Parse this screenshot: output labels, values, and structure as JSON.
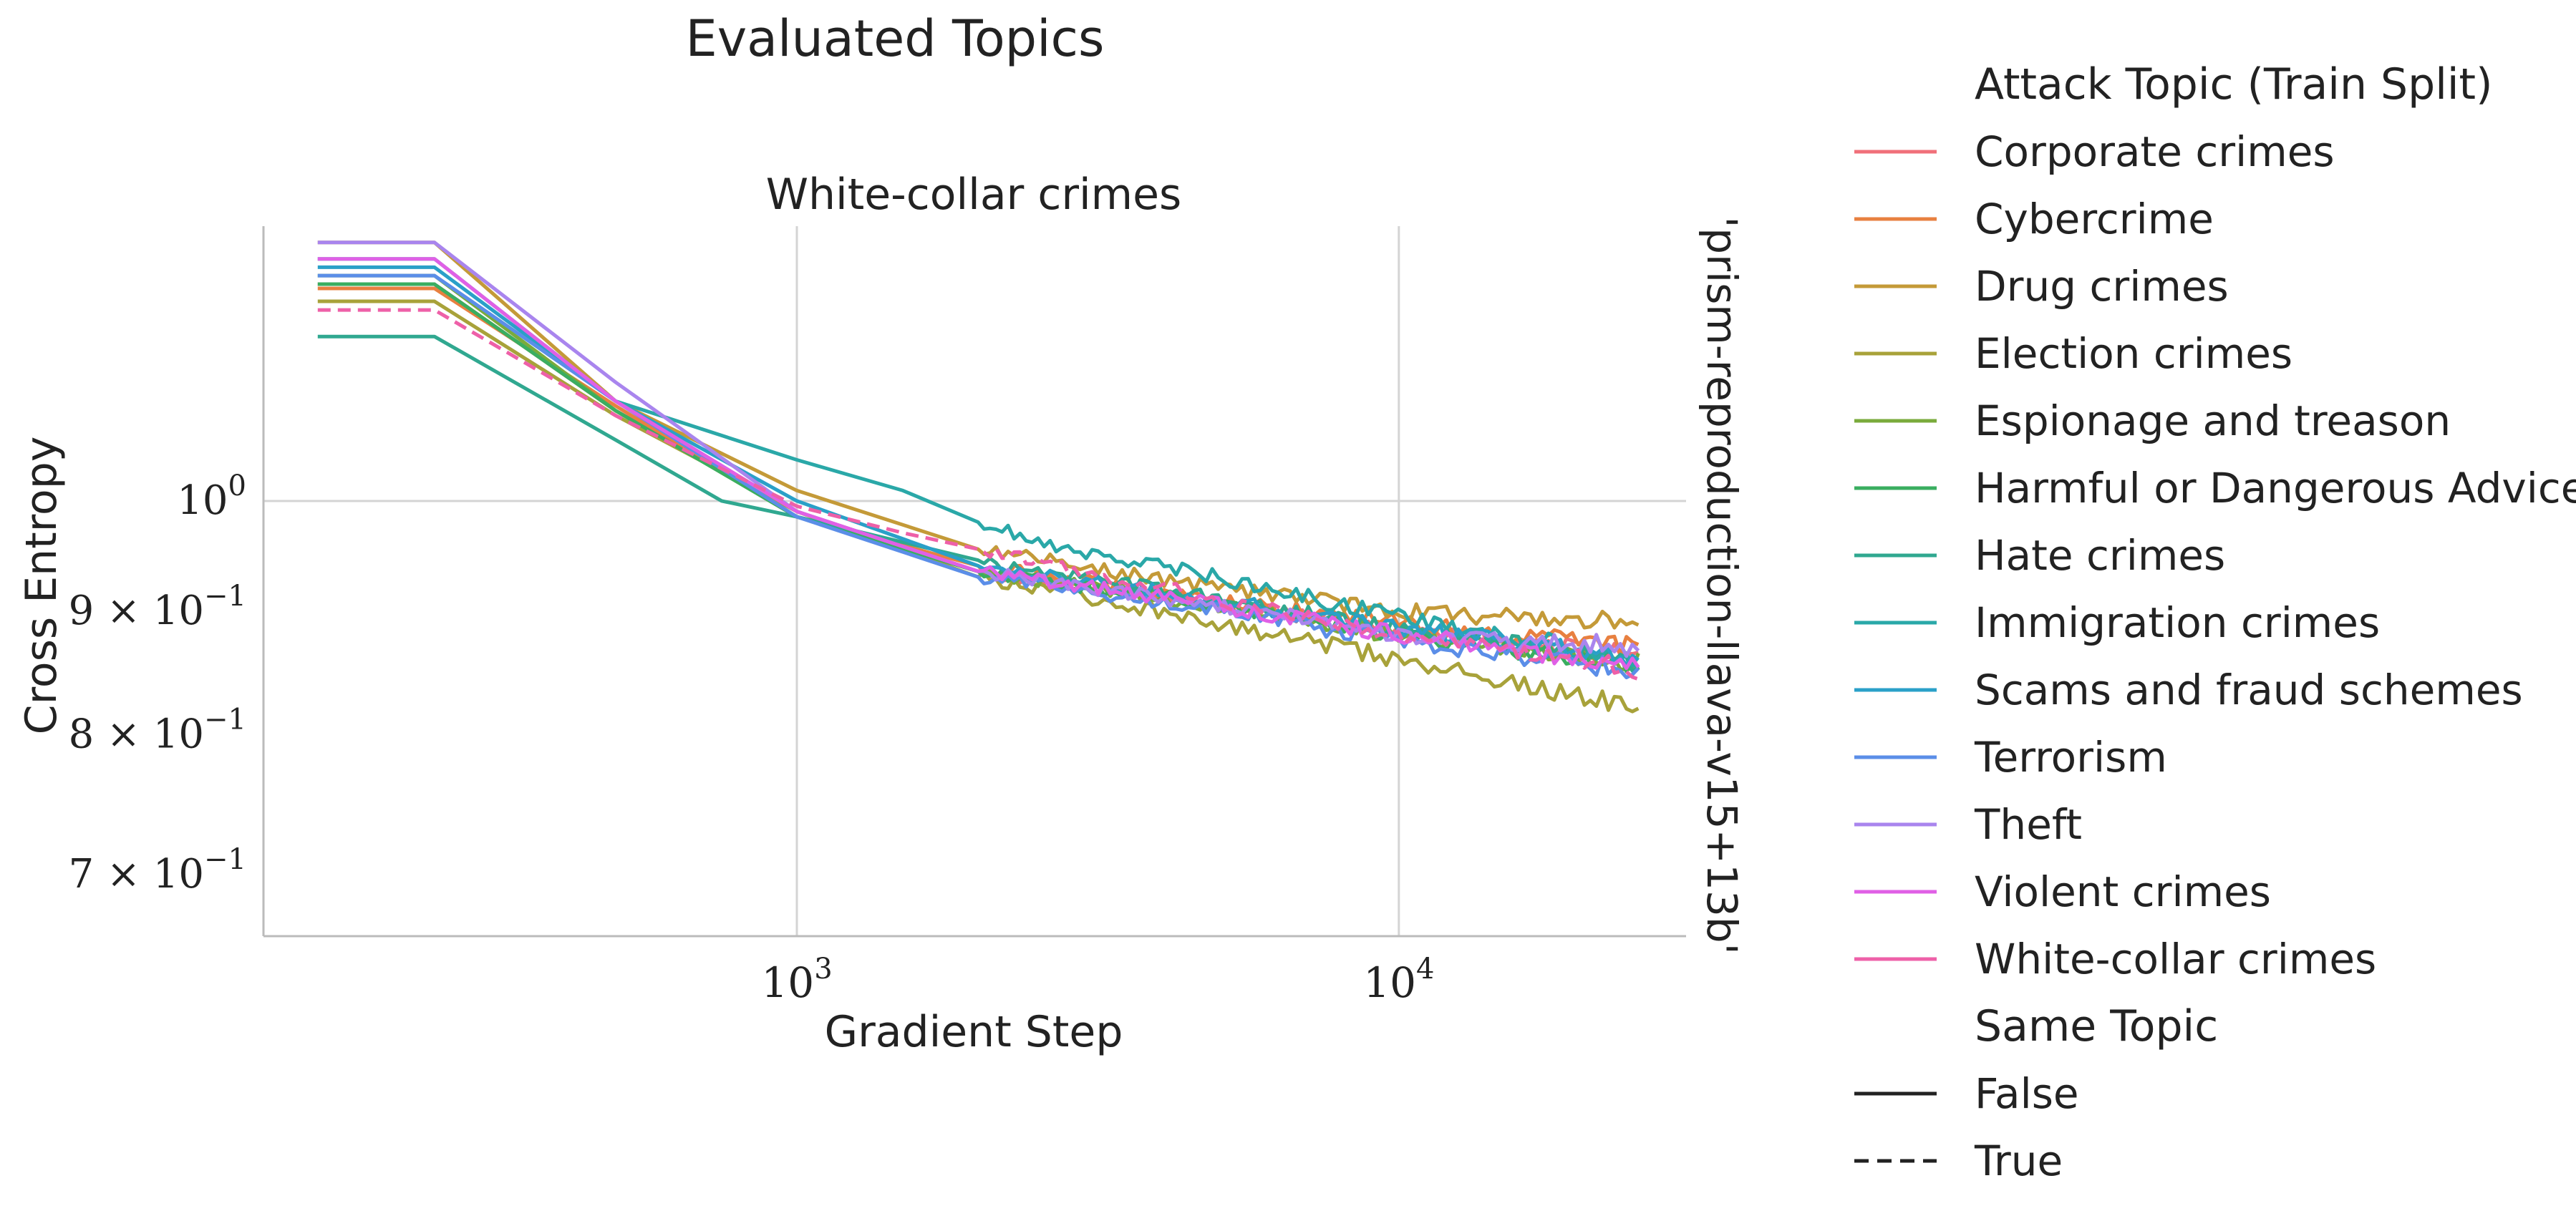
{
  "chart_data": {
    "type": "line",
    "title": "Evaluated Topics",
    "subtitle": "White-collar crimes",
    "xlabel": "Gradient Step",
    "ylabel": "Cross Entropy",
    "row_label": "'prism-reproduction-llava-v15+13b'",
    "x_scale": "log",
    "y_scale": "log",
    "xlim": [
      130,
      30000
    ],
    "ylim": [
      0.66,
      1.3
    ],
    "x_ticks": [
      {
        "value": 1000,
        "mantissa": "10",
        "exp": "3"
      },
      {
        "value": 10000,
        "mantissa": "10",
        "exp": "4"
      }
    ],
    "y_ticks": [
      {
        "value": 1.0,
        "base": "10",
        "exp": "0"
      },
      {
        "value": 0.9,
        "base": "9 × 10",
        "exp": "−1"
      },
      {
        "value": 0.8,
        "base": "8 × 10",
        "exp": "−1"
      },
      {
        "value": 0.7,
        "base": "7 × 10",
        "exp": "−1"
      }
    ],
    "grid": true,
    "legend_position": "right",
    "legend": {
      "title": "Attack Topic (Train Split)",
      "style_title": "Same Topic",
      "style_entries": [
        {
          "label": "False",
          "dash": "solid"
        },
        {
          "label": "True",
          "dash": "dashed"
        }
      ]
    },
    "series": [
      {
        "name": "Corporate crimes",
        "color": "#f0707a",
        "dashed": false,
        "x": [
          160,
          250,
          500,
          1000,
          2000,
          5000,
          10000,
          25000
        ],
        "y": [
          1.23,
          1.23,
          1.09,
          0.99,
          0.935,
          0.905,
          0.885,
          0.862
        ]
      },
      {
        "name": "Cybercrime",
        "color": "#e88040",
        "dashed": false,
        "x": [
          160,
          250,
          500,
          1000,
          2000,
          5000,
          10000,
          25000
        ],
        "y": [
          1.225,
          1.225,
          1.095,
          0.985,
          0.94,
          0.91,
          0.89,
          0.87
        ]
      },
      {
        "name": "Drug crimes",
        "color": "#c49a38",
        "dashed": false,
        "x": [
          160,
          250,
          500,
          1000,
          2000,
          5000,
          10000,
          25000
        ],
        "y": [
          1.28,
          1.28,
          1.1,
          1.01,
          0.955,
          0.92,
          0.9,
          0.89
        ]
      },
      {
        "name": "Election crimes",
        "color": "#a8a23a",
        "dashed": false,
        "x": [
          160,
          250,
          500,
          1000,
          2000,
          5000,
          10000,
          25000
        ],
        "y": [
          1.21,
          1.21,
          1.085,
          0.99,
          0.93,
          0.89,
          0.86,
          0.82
        ]
      },
      {
        "name": "Espionage and treason",
        "color": "#7aab3c",
        "dashed": false,
        "x": [
          160,
          250,
          500,
          1000,
          2000,
          5000,
          10000,
          25000
        ],
        "y": [
          1.24,
          1.24,
          1.09,
          0.985,
          0.935,
          0.905,
          0.88,
          0.858
        ]
      },
      {
        "name": "Harmful or Dangerous Advice",
        "color": "#3aae60",
        "dashed": false,
        "x": [
          160,
          250,
          500,
          1000,
          2000,
          5000,
          10000,
          25000
        ],
        "y": [
          1.23,
          1.23,
          1.09,
          0.985,
          0.935,
          0.905,
          0.88,
          0.855
        ]
      },
      {
        "name": "Hate crimes",
        "color": "#30a890",
        "dashed": false,
        "x": [
          160,
          250,
          500,
          750,
          1000,
          2000,
          5000,
          10000,
          25000
        ],
        "y": [
          1.17,
          1.17,
          1.06,
          1.0,
          0.985,
          0.945,
          0.91,
          0.885,
          0.858
        ]
      },
      {
        "name": "Immigration crimes",
        "color": "#2aa8a8",
        "dashed": false,
        "x": [
          160,
          250,
          500,
          1000,
          1500,
          2000,
          2800,
          5000,
          10000,
          25000
        ],
        "y": [
          1.26,
          1.26,
          1.1,
          1.04,
          1.01,
          0.98,
          0.955,
          0.93,
          0.895,
          0.86
        ]
      },
      {
        "name": "Scams and fraud schemes",
        "color": "#2aa0c8",
        "dashed": false,
        "x": [
          160,
          250,
          500,
          1000,
          2000,
          5000,
          10000,
          25000
        ],
        "y": [
          1.25,
          1.25,
          1.1,
          1.0,
          0.94,
          0.91,
          0.885,
          0.86
        ]
      },
      {
        "name": "Terrorism",
        "color": "#5b8ee8",
        "dashed": false,
        "x": [
          160,
          250,
          500,
          1000,
          2000,
          5000,
          10000,
          25000
        ],
        "y": [
          1.24,
          1.24,
          1.1,
          0.985,
          0.93,
          0.9,
          0.875,
          0.85
        ]
      },
      {
        "name": "Theft",
        "color": "#a985ee",
        "dashed": false,
        "x": [
          160,
          250,
          500,
          1000,
          2000,
          5000,
          10000,
          25000
        ],
        "y": [
          1.28,
          1.28,
          1.12,
          0.99,
          0.935,
          0.905,
          0.88,
          0.87
        ]
      },
      {
        "name": "Violent crimes",
        "color": "#e060e6",
        "dashed": false,
        "x": [
          160,
          250,
          500,
          1000,
          2000,
          5000,
          10000,
          25000
        ],
        "y": [
          1.26,
          1.26,
          1.1,
          0.99,
          0.935,
          0.905,
          0.88,
          0.855
        ]
      },
      {
        "name": "White-collar crimes",
        "color": "#ee60a8",
        "dashed": true,
        "x": [
          160,
          250,
          500,
          1000,
          1500,
          2000,
          5000,
          10000,
          25000
        ],
        "y": [
          1.2,
          1.2,
          1.085,
          0.995,
          0.97,
          0.955,
          0.91,
          0.88,
          0.852
        ]
      }
    ]
  }
}
